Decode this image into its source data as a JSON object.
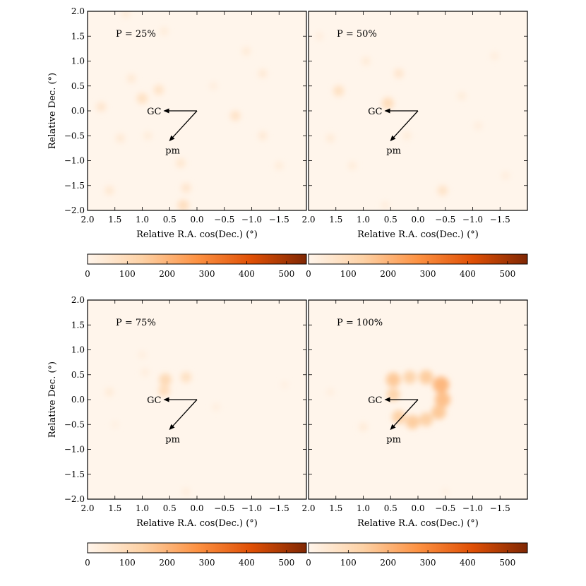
{
  "chart_data": [
    {
      "type": "heatmap",
      "title": "P = 25%",
      "panel_label": "P = 25%",
      "xlabel": "Relative R.A. cos(Dec.) (°)",
      "ylabel": "Relative Dec. (°)",
      "xlim": [
        2.0,
        -2.0
      ],
      "ylim": [
        -2.0,
        2.0
      ],
      "xticks": [
        "2.0",
        "1.5",
        "1.0",
        "0.5",
        "0.0",
        "−0.5",
        "−1.0",
        "−1.5"
      ],
      "yticks": [
        "2.0",
        "1.5",
        "1.0",
        "0.5",
        "0.0",
        "−0.5",
        "−1.0",
        "−1.5",
        "−2.0"
      ],
      "structure": "scattered diffuse overdensities",
      "blobs": [
        [
          1.75,
          0.08,
          60
        ],
        [
          1.0,
          0.25,
          80
        ],
        [
          0.7,
          0.42,
          70
        ],
        [
          -0.7,
          -0.1,
          70
        ],
        [
          0.25,
          -1.9,
          90
        ],
        [
          0.2,
          -1.55,
          60
        ],
        [
          1.6,
          -1.6,
          50
        ],
        [
          0.3,
          -1.05,
          55
        ],
        [
          1.2,
          0.65,
          45
        ],
        [
          -1.2,
          0.75,
          45
        ],
        [
          1.4,
          -0.55,
          45
        ],
        [
          -1.2,
          -0.5,
          45
        ],
        [
          1.3,
          1.95,
          40
        ],
        [
          -0.9,
          1.2,
          40
        ],
        [
          0.6,
          1.6,
          35
        ],
        [
          -0.3,
          0.5,
          30
        ],
        [
          -1.5,
          -1.1,
          35
        ],
        [
          0.9,
          -0.5,
          35
        ]
      ],
      "arrows": [
        {
          "label": "GC",
          "from": [
            0.0,
            0.0
          ],
          "to": [
            0.6,
            0.0
          ]
        },
        {
          "label": "pm",
          "from": [
            0.0,
            0.0
          ],
          "to": [
            0.5,
            -0.6
          ]
        }
      ]
    },
    {
      "type": "heatmap",
      "title": "P = 50%",
      "panel_label": "P = 50%",
      "xlabel": "Relative R.A. cos(Dec.) (°)",
      "ylabel": "",
      "xlim": [
        2.0,
        -2.0
      ],
      "ylim": [
        -2.0,
        2.0
      ],
      "xticks": [
        "2.0",
        "1.5",
        "1.0",
        "0.5",
        "0.0",
        "−0.5",
        "−1.0",
        "−1.5"
      ],
      "yticks": [],
      "structure": "scattered overdensities, slightly more concentrated",
      "blobs": [
        [
          1.45,
          0.4,
          80
        ],
        [
          0.55,
          0.15,
          100
        ],
        [
          0.35,
          0.75,
          60
        ],
        [
          0.95,
          1.0,
          40
        ],
        [
          -0.45,
          -1.6,
          70
        ],
        [
          1.6,
          -0.55,
          40
        ],
        [
          1.2,
          -1.1,
          35
        ],
        [
          -0.8,
          0.3,
          35
        ],
        [
          0.2,
          -0.5,
          35
        ],
        [
          -1.1,
          -0.3,
          30
        ],
        [
          1.8,
          1.5,
          30
        ],
        [
          -1.4,
          1.1,
          30
        ],
        [
          0.6,
          -1.9,
          30
        ],
        [
          -1.6,
          -1.3,
          30
        ]
      ],
      "arrows": [
        {
          "label": "GC",
          "from": [
            0.0,
            0.0
          ],
          "to": [
            0.6,
            0.0
          ]
        },
        {
          "label": "pm",
          "from": [
            0.0,
            0.0
          ],
          "to": [
            0.5,
            -0.6
          ]
        }
      ]
    },
    {
      "type": "heatmap",
      "title": "P = 75%",
      "panel_label": "P = 75%",
      "xlabel": "Relative R.A. cos(Dec.) (°)",
      "ylabel": "Relative Dec. (°)",
      "xlim": [
        2.0,
        -2.0
      ],
      "ylim": [
        -2.0,
        2.0
      ],
      "xticks": [
        "2.0",
        "1.5",
        "1.0",
        "0.5",
        "0.0",
        "−0.5",
        "−1.0",
        "−1.5"
      ],
      "yticks": [
        "2.0",
        "1.5",
        "1.0",
        "0.5",
        "0.0",
        "−0.5",
        "−1.0",
        "−1.5",
        "−2.0"
      ],
      "structure": "few sparse overdensities near centre",
      "blobs": [
        [
          0.58,
          0.4,
          110
        ],
        [
          0.6,
          0.18,
          95
        ],
        [
          0.2,
          0.45,
          80
        ],
        [
          1.6,
          0.15,
          40
        ],
        [
          0.95,
          0.55,
          30
        ],
        [
          0.2,
          -1.85,
          30
        ],
        [
          -0.35,
          -0.15,
          25
        ],
        [
          1.0,
          0.9,
          25
        ],
        [
          -1.6,
          0.3,
          20
        ],
        [
          1.5,
          -0.5,
          20
        ]
      ],
      "arrows": [
        {
          "label": "GC",
          "from": [
            0.0,
            0.0
          ],
          "to": [
            0.6,
            0.0
          ]
        },
        {
          "label": "pm",
          "from": [
            0.0,
            0.0
          ],
          "to": [
            0.5,
            -0.6
          ]
        }
      ]
    },
    {
      "type": "heatmap",
      "title": "P = 100%",
      "panel_label": "P = 100%",
      "xlabel": "Relative R.A. cos(Dec.) (°)",
      "ylabel": "",
      "xlim": [
        2.0,
        -2.0
      ],
      "ylim": [
        -2.0,
        2.0
      ],
      "xticks": [
        "2.0",
        "1.5",
        "1.0",
        "0.5",
        "0.0",
        "−0.5",
        "−1.0",
        "−1.5"
      ],
      "yticks": [],
      "structure": "strong ring-shaped overdensity around centre",
      "blobs": [
        [
          0.45,
          0.4,
          160
        ],
        [
          0.15,
          0.45,
          130
        ],
        [
          -0.15,
          0.45,
          150
        ],
        [
          -0.42,
          0.3,
          200
        ],
        [
          -0.45,
          0.0,
          180
        ],
        [
          -0.38,
          -0.25,
          160
        ],
        [
          -0.15,
          -0.4,
          140
        ],
        [
          0.1,
          -0.45,
          150
        ],
        [
          0.35,
          -0.35,
          140
        ],
        [
          0.45,
          0.1,
          130
        ],
        [
          1.0,
          -0.55,
          40
        ],
        [
          1.6,
          0.15,
          25
        ],
        [
          -0.5,
          -1.85,
          20
        ]
      ],
      "arrows": [
        {
          "label": "GC",
          "from": [
            0.0,
            0.0
          ],
          "to": [
            0.6,
            0.0
          ]
        },
        {
          "label": "pm",
          "from": [
            0.0,
            0.0
          ],
          "to": [
            0.5,
            -0.6
          ]
        }
      ]
    }
  ],
  "colorbar": {
    "min": 0,
    "max": 550,
    "ticks": [
      0,
      100,
      200,
      300,
      400,
      500
    ],
    "tick_labels": [
      "0",
      "100",
      "200",
      "300",
      "400",
      "500"
    ],
    "colormap": "Oranges",
    "colors": [
      "#fff5eb",
      "#fdd1a5",
      "#fd9243",
      "#df4f05",
      "#7f2704"
    ]
  }
}
